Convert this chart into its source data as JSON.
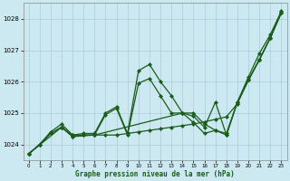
{
  "title": "Graphe pression niveau de la mer (hPa)",
  "bg_color": "#cce8f0",
  "grid_color": "#aaccdd",
  "line_color": "#1a5c1a",
  "ylim": [
    1023.5,
    1028.5
  ],
  "xlim": [
    -0.5,
    23.5
  ],
  "yticks": [
    1024,
    1025,
    1026,
    1027,
    1028
  ],
  "xticks": [
    0,
    1,
    2,
    3,
    4,
    5,
    6,
    7,
    8,
    9,
    10,
    11,
    12,
    13,
    14,
    15,
    16,
    17,
    18,
    19,
    20,
    21,
    22,
    23
  ],
  "line1_x": [
    0,
    1,
    2,
    3,
    4,
    5,
    6,
    7,
    8,
    9,
    10,
    11,
    12,
    13,
    14,
    15,
    16,
    17,
    18,
    19,
    20,
    21,
    22,
    23
  ],
  "line1_y": [
    1023.7,
    1024.0,
    1024.4,
    1024.65,
    1024.3,
    1024.35,
    1024.35,
    1025.0,
    1025.2,
    1024.35,
    1026.35,
    1026.55,
    1026.0,
    1025.55,
    1025.0,
    1025.0,
    1024.65,
    1024.45,
    1024.3,
    1025.35,
    1026.15,
    1026.9,
    1027.5,
    1028.25
  ],
  "line2_x": [
    0,
    1,
    2,
    3,
    4,
    5,
    6,
    7,
    8,
    9,
    10,
    11,
    12,
    13,
    14,
    15,
    16,
    17,
    18,
    19,
    20,
    21,
    22,
    23
  ],
  "line2_y": [
    1023.7,
    1024.0,
    1024.35,
    1024.55,
    1024.3,
    1024.3,
    1024.3,
    1024.3,
    1024.3,
    1024.35,
    1024.4,
    1024.45,
    1024.5,
    1024.55,
    1024.6,
    1024.65,
    1024.72,
    1024.8,
    1024.88,
    1025.3,
    1026.05,
    1026.7,
    1027.4,
    1028.2
  ],
  "line3_x": [
    0,
    1,
    2,
    3,
    4,
    5,
    6,
    7,
    8,
    9,
    10,
    11,
    12,
    13,
    14,
    15,
    16,
    17,
    18,
    19,
    20,
    21,
    22,
    23
  ],
  "line3_y": [
    1023.7,
    1024.0,
    1024.35,
    1024.55,
    1024.25,
    1024.3,
    1024.3,
    1024.95,
    1025.15,
    1024.3,
    1025.95,
    1026.1,
    1025.55,
    1025.0,
    1025.0,
    1024.7,
    1024.35,
    1024.45,
    1024.35,
    1025.35,
    1026.05,
    1026.7,
    1027.4,
    1028.2
  ],
  "line4_x": [
    0,
    3,
    4,
    6,
    14,
    15,
    16,
    17,
    18,
    19,
    20,
    21,
    22,
    23
  ],
  "line4_y": [
    1023.7,
    1024.55,
    1024.25,
    1024.3,
    1025.0,
    1024.9,
    1024.55,
    1025.35,
    1024.3,
    1025.35,
    1026.05,
    1026.7,
    1027.4,
    1028.2
  ]
}
